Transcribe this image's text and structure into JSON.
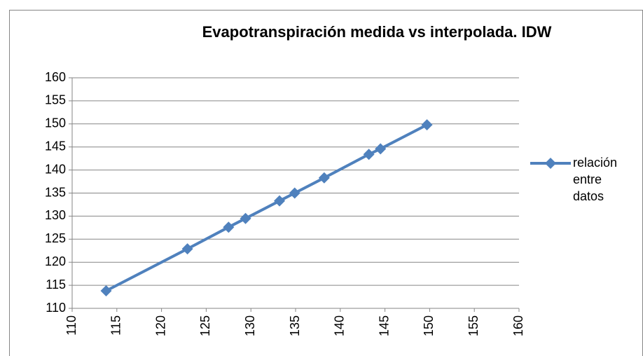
{
  "chart_data": {
    "type": "line",
    "title": "Evapotranspiración medida vs interpolada. IDW",
    "x": [
      113.8,
      122.9,
      127.5,
      129.4,
      133.2,
      134.9,
      138.2,
      143.2,
      144.5,
      149.7
    ],
    "series": [
      {
        "name": "relación entre datos",
        "color": "#4f81bd",
        "values": [
          113.8,
          122.9,
          127.6,
          129.5,
          133.3,
          135.0,
          138.3,
          143.4,
          144.6,
          149.8
        ]
      }
    ],
    "xlim": [
      110,
      160
    ],
    "xticks": [
      110,
      115,
      120,
      125,
      130,
      135,
      140,
      145,
      150,
      155,
      160
    ],
    "ylim": [
      110,
      160
    ],
    "yticks": [
      110,
      115,
      120,
      125,
      130,
      135,
      140,
      145,
      150,
      155,
      160
    ],
    "grid": true,
    "legend": "right"
  }
}
